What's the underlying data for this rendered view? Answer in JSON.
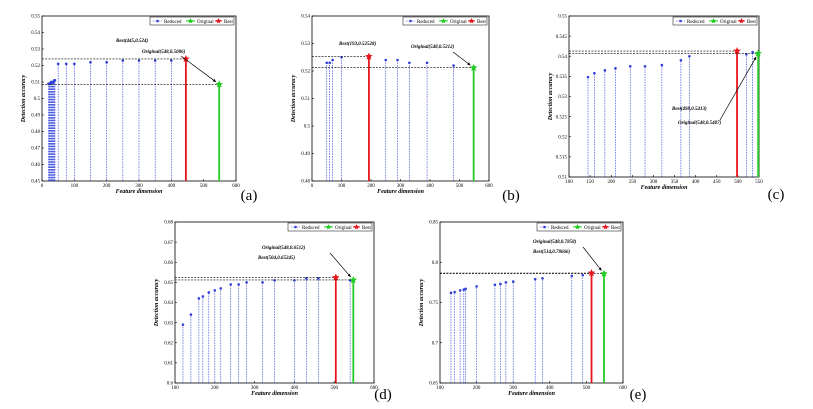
{
  "legend": {
    "reduced": "Reduced",
    "original": "Original",
    "best": "Best"
  },
  "colors": {
    "reduced": "#2f3fd8",
    "original": "#22cc22",
    "best": "#e8141c",
    "annot": "#000000"
  },
  "chart_data": [
    {
      "panel": "(a)",
      "type": "stem",
      "xlabel": "Feature dimension",
      "ylabel": "Detection accuracy",
      "xlim": [
        0,
        600
      ],
      "ylim": [
        0.45,
        0.55
      ],
      "xticks": [
        "0",
        "100",
        "200",
        "300",
        "400",
        "500",
        "600"
      ],
      "yticks": [
        "0.45",
        "0.46",
        "0.47",
        "0.48",
        "0.49",
        "0.5",
        "0.51",
        "0.52",
        "0.53",
        "0.54",
        "0.55"
      ],
      "reduced": {
        "x": [
          20,
          22,
          24,
          26,
          28,
          30,
          32,
          34,
          36,
          38,
          40,
          50,
          75,
          100,
          150,
          200,
          250,
          300,
          350,
          400
        ],
        "y": [
          0.509,
          0.509,
          0.509,
          0.509,
          0.51,
          0.51,
          0.51,
          0.51,
          0.51,
          0.511,
          0.511,
          0.521,
          0.521,
          0.521,
          0.522,
          0.522,
          0.523,
          0.523,
          0.523,
          0.523
        ]
      },
      "best": {
        "x": 445,
        "y": 0.524,
        "label": "Best(445,0.524)"
      },
      "original": {
        "x": 548,
        "y": 0.5086,
        "label": "Original(548,0.5086)"
      }
    },
    {
      "panel": "(b)",
      "type": "stem",
      "xlabel": "Feature dimension",
      "ylabel": "Detection accuracy",
      "xlim": [
        0,
        600
      ],
      "ylim": [
        0.48,
        0.54
      ],
      "xticks": [
        "0",
        "100",
        "200",
        "300",
        "400",
        "500",
        "600"
      ],
      "yticks": [
        "0.48",
        "0.49",
        "0.5",
        "0.51",
        "0.52",
        "0.53",
        "0.54"
      ],
      "reduced": {
        "x": [
          50,
          60,
          70,
          100,
          250,
          290,
          330,
          390,
          480
        ],
        "y": [
          0.523,
          0.523,
          0.524,
          0.525,
          0.524,
          0.524,
          0.523,
          0.523,
          0.522
        ]
      },
      "best": {
        "x": 193,
        "y": 0.52528,
        "label": "Best(193,0.52528)"
      },
      "original": {
        "x": 548,
        "y": 0.5212,
        "label": "Original(548,0.5212)"
      }
    },
    {
      "panel": "(c)",
      "type": "stem",
      "xlabel": "Feature dimension",
      "ylabel": "Detection accuracy",
      "xlim": [
        100,
        550
      ],
      "ylim": [
        0.51,
        0.55
      ],
      "xticks": [
        "100",
        "150",
        "200",
        "250",
        "300",
        "350",
        "400",
        "450",
        "500",
        "550"
      ],
      "yticks": [
        "0.51",
        "0.515",
        "0.52",
        "0.525",
        "0.53",
        "0.535",
        "0.54",
        "0.545",
        "0.55"
      ],
      "reduced": {
        "x": [
          145,
          160,
          185,
          210,
          245,
          280,
          320,
          365,
          385,
          520,
          535
        ],
        "y": [
          0.5348,
          0.5358,
          0.5365,
          0.537,
          0.5375,
          0.5375,
          0.5378,
          0.539,
          0.54,
          0.5405,
          0.541
        ]
      },
      "best": {
        "x": 498,
        "y": 0.5413,
        "label": "Best(498,0.5413)"
      },
      "original": {
        "x": 548,
        "y": 0.5407,
        "label": "Original(548,0.5407)"
      }
    },
    {
      "panel": "(d)",
      "type": "stem",
      "xlabel": "Feature dimension",
      "ylabel": "Detection accuracy",
      "xlim": [
        100,
        600
      ],
      "ylim": [
        0.6,
        0.68
      ],
      "xticks": [
        "100",
        "200",
        "300",
        "400",
        "500",
        "600"
      ],
      "yticks": [
        "0.6",
        "0.61",
        "0.62",
        "0.63",
        "0.64",
        "0.65",
        "0.66",
        "0.67",
        "0.68"
      ],
      "reduced": {
        "x": [
          120,
          140,
          160,
          170,
          185,
          200,
          215,
          240,
          260,
          280,
          320,
          350,
          400,
          430,
          460,
          540
        ],
        "y": [
          0.629,
          0.634,
          0.642,
          0.643,
          0.645,
          0.646,
          0.647,
          0.649,
          0.649,
          0.65,
          0.65,
          0.651,
          0.651,
          0.652,
          0.652,
          0.651
        ]
      },
      "best": {
        "x": 504,
        "y": 0.65245,
        "label": "Best(504,0.65245)"
      },
      "original": {
        "x": 548,
        "y": 0.6512,
        "label": "Original(548,0.6512)"
      }
    },
    {
      "panel": "(e)",
      "type": "stem",
      "xlabel": "Feature dimension",
      "ylabel": "Detection accuracy",
      "xlim": [
        100,
        600
      ],
      "ylim": [
        0.65,
        0.85
      ],
      "xticks": [
        "100",
        "200",
        "300",
        "400",
        "500",
        "600"
      ],
      "yticks": [
        "0.65",
        "0.7",
        "0.75",
        "0.8",
        "0.85"
      ],
      "reduced": {
        "x": [
          130,
          140,
          155,
          165,
          170,
          200,
          250,
          265,
          280,
          300,
          360,
          380,
          460,
          490
        ],
        "y": [
          0.762,
          0.763,
          0.765,
          0.766,
          0.767,
          0.77,
          0.772,
          0.773,
          0.775,
          0.776,
          0.779,
          0.78,
          0.783,
          0.784
        ]
      },
      "best": {
        "x": 514,
        "y": 0.78666,
        "label": "Best(514,0.78666)"
      },
      "original": {
        "x": 548,
        "y": 0.7858,
        "label": "Original(548,0.7858)"
      }
    }
  ]
}
